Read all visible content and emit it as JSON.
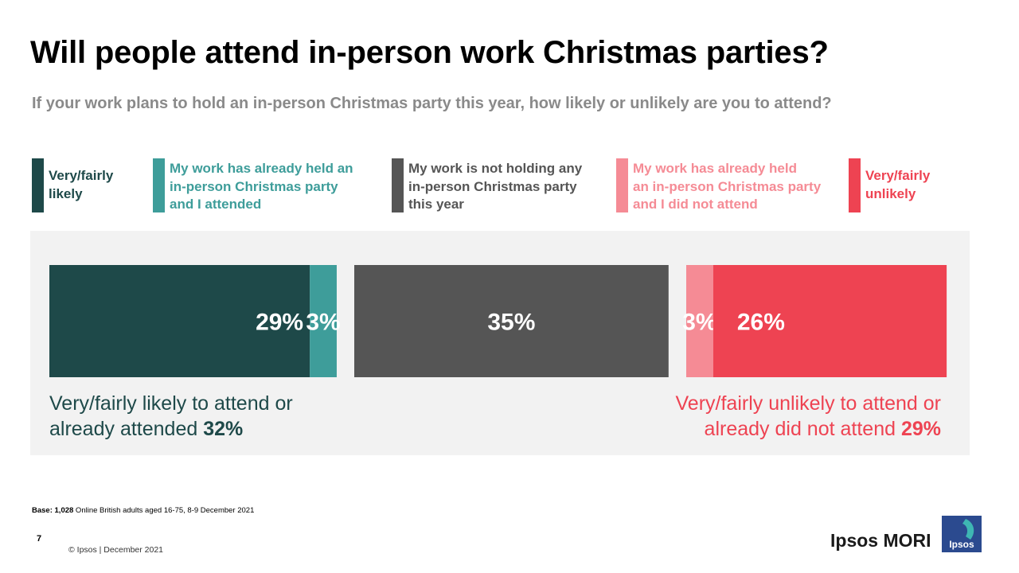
{
  "title": "Will people attend in-person work Christmas parties?",
  "subtitle": "If your work plans to hold an in-person Christmas party this year, how likely or unlikely are you to attend?",
  "legend": [
    {
      "label_lines": [
        "Very/fairly",
        "likely"
      ],
      "color": "#1e4949"
    },
    {
      "label_lines": [
        "My work has already held an",
        "in-person Christmas party",
        "and I attended"
      ],
      "color": "#3e9d9a"
    },
    {
      "label_lines": [
        "My work is not holding any",
        "in-person Christmas party",
        "this year"
      ],
      "color": "#555555"
    },
    {
      "label_lines": [
        "My work has already held",
        "an in-person Christmas party",
        "and I did not attend"
      ],
      "color": "#f58b95"
    },
    {
      "label_lines": [
        "Very/fairly",
        "unlikely"
      ],
      "color": "#ee4352"
    }
  ],
  "chart_data": {
    "type": "bar",
    "orientation": "horizontal-stacked",
    "groups": [
      {
        "segments": [
          {
            "series": "Very/fairly likely",
            "value": 29,
            "label": "29%"
          },
          {
            "series": "My work has already held an in-person Christmas party and I attended",
            "value": 3,
            "label": "3%"
          }
        ]
      },
      {
        "segments": [
          {
            "series": "My work is not holding any in-person Christmas party this year",
            "value": 35,
            "label": "35%"
          }
        ]
      },
      {
        "segments": [
          {
            "series": "My work has already held an in-person Christmas party and I did not attend",
            "value": 3,
            "label": "3%"
          },
          {
            "series": "Very/fairly unlikely",
            "value": 26,
            "label": "26%"
          }
        ]
      }
    ],
    "unit": "%"
  },
  "summary_left": {
    "text_line1": "Very/fairly likely to attend or",
    "text_line2": "already attended ",
    "value": "32%"
  },
  "summary_right": {
    "text_line1": "Very/fairly unlikely to attend or",
    "text_line2": "already did not attend ",
    "value": "29%"
  },
  "base": {
    "label": "Base:",
    "count": "1,028",
    "text": " Online British adults aged 16-75, 8-9 December 2021"
  },
  "page_number": "7",
  "copyright": "© Ipsos | December 2021",
  "brand": {
    "name": "Ipsos MORI",
    "logo_text": "Ipsos",
    "logo_color": "#2b4a8f",
    "logo_accent": "#3eb6b3"
  }
}
